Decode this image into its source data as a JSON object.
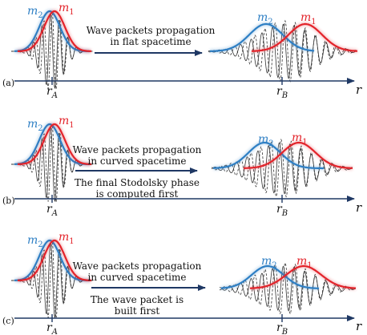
{
  "panels": [
    {
      "id": "a",
      "tag": "(a)",
      "caption_lines": [
        "Wave packets propagation",
        "in flat spacetime"
      ],
      "left_labels": {
        "m2": "m",
        "m2_sub": "2",
        "m1": "m",
        "m1_sub": "1"
      },
      "right_labels": {
        "m2": "m",
        "m2_sub": "2",
        "m1": "m",
        "m1_sub": "1"
      },
      "rA": "r",
      "rA_sub": "A",
      "rB": "r",
      "rB_sub": "B",
      "r": "r"
    },
    {
      "id": "b",
      "tag": "(b)",
      "caption_lines": [
        "Wave packets propagation",
        "in curved spacetime"
      ],
      "note_lines": [
        "The final Stodolsky phase",
        "is computed first"
      ],
      "left_labels": {
        "m2": "m",
        "m2_sub": "2",
        "m1": "m",
        "m1_sub": "1"
      },
      "right_labels": {
        "m2": "m",
        "m2_sub": "2",
        "m1": "m",
        "m1_sub": "1"
      },
      "rA": "r",
      "rA_sub": "A",
      "rB": "r",
      "rB_sub": "B",
      "r": "r"
    },
    {
      "id": "c",
      "tag": "(c)",
      "caption_lines": [
        "Wave packets propagation",
        "in curved spacetime"
      ],
      "note_lines": [
        "The wave packet is",
        "built first"
      ],
      "left_labels": {
        "m2": "m",
        "m2_sub": "2",
        "m1": "m",
        "m1_sub": "1"
      },
      "right_labels": {
        "m2": "m",
        "m2_sub": "2",
        "m1": "m",
        "m1_sub": "1"
      },
      "rA": "r",
      "rA_sub": "A",
      "rB": "r",
      "rB_sub": "B",
      "r": "r"
    }
  ],
  "colors": {
    "m1": "#e3242b",
    "m2": "#2e7fc4",
    "axis": "#1f3864",
    "wave": "#333333"
  }
}
